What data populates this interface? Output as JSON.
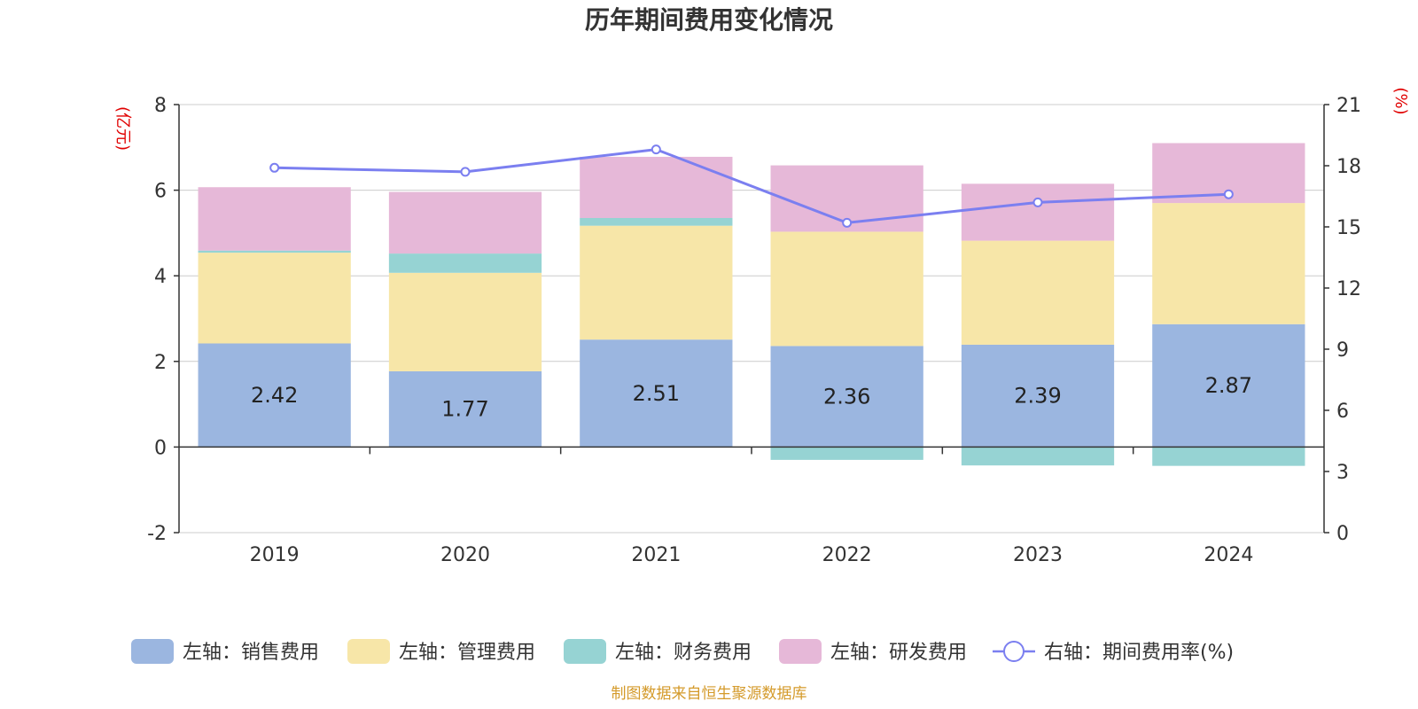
{
  "chart_data": {
    "type": "bar",
    "title": "历年期间费用变化情况",
    "categories": [
      "2019",
      "2020",
      "2021",
      "2022",
      "2023",
      "2024"
    ],
    "left_axis": {
      "unit_label": "(亿元)",
      "ylim": [
        -2,
        8
      ],
      "ticks": [
        "-2",
        "0",
        "2",
        "4",
        "6",
        "8"
      ]
    },
    "right_axis": {
      "unit_label": "(%)",
      "ylim": [
        0,
        21
      ],
      "ticks": [
        "0",
        "3",
        "6",
        "9",
        "12",
        "15",
        "18",
        "21"
      ]
    },
    "series": [
      {
        "name": "左轴：销售费用",
        "axis": "left",
        "stack": true,
        "color": "#9bb6e0",
        "values": [
          2.42,
          1.77,
          2.51,
          2.36,
          2.39,
          2.87
        ],
        "show_labels": true
      },
      {
        "name": "左轴：管理费用",
        "axis": "left",
        "stack": true,
        "color": "#f7e6a8",
        "values": [
          2.12,
          2.3,
          2.66,
          2.67,
          2.43,
          2.83
        ],
        "show_labels": false
      },
      {
        "name": "左轴：财务费用",
        "axis": "left",
        "stack": true,
        "color": "#96d3d3",
        "values": [
          0.05,
          0.45,
          0.18,
          -0.3,
          -0.43,
          -0.44
        ],
        "show_labels": false
      },
      {
        "name": "左轴：研发费用",
        "axis": "left",
        "stack": true,
        "color": "#e6b8d8",
        "values": [
          1.48,
          1.44,
          1.43,
          1.55,
          1.33,
          1.4
        ],
        "show_labels": false
      },
      {
        "name": "右轴：期间费用率(%)",
        "axis": "right",
        "type": "line",
        "color": "#7b7ff0",
        "values": [
          17.9,
          17.7,
          18.8,
          15.2,
          16.2,
          16.6
        ]
      }
    ],
    "grid": true,
    "legend_position": "bottom"
  },
  "source_note": "制图数据来自恒生聚源数据库"
}
